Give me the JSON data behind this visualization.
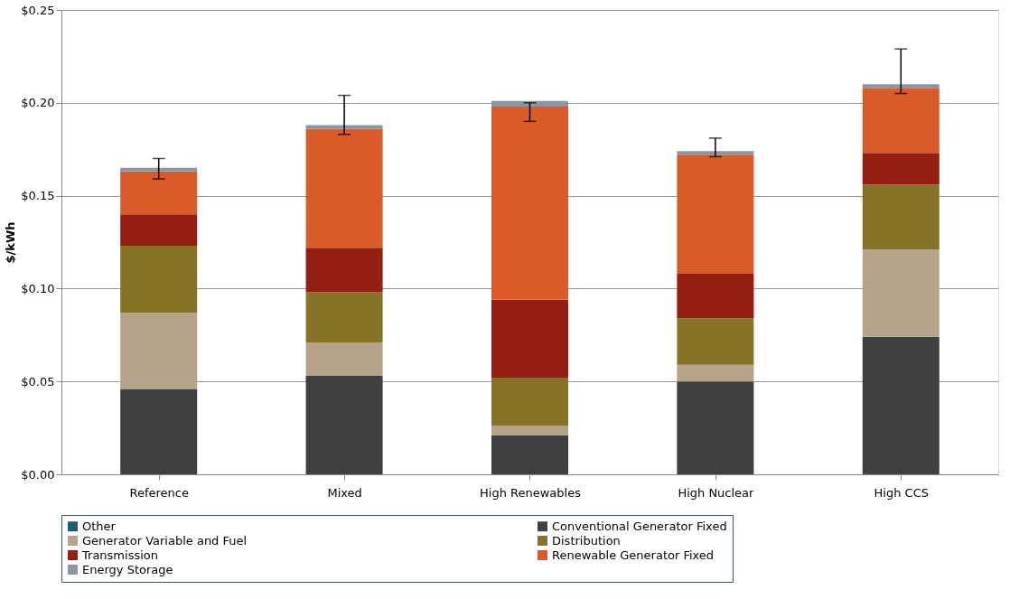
{
  "chart_data": {
    "type": "bar",
    "stacked": true,
    "ylabel": "$/kWh",
    "categories": [
      "Reference",
      "Mixed",
      "High Renewables",
      "High Nuclear",
      "High CCS"
    ],
    "series": [
      {
        "name": "Other",
        "color": "#1f5c7a",
        "values": [
          0,
          0,
          0,
          0,
          0
        ]
      },
      {
        "name": "Conventional Generator Fixed",
        "color": "#404040",
        "values": [
          0.046,
          0.053,
          0.021,
          0.05,
          0.074
        ]
      },
      {
        "name": "Generator Variable and Fuel",
        "color": "#b5a48a",
        "values": [
          0.041,
          0.018,
          0.005,
          0.009,
          0.047
        ]
      },
      {
        "name": "Distribution",
        "color": "#857428",
        "values": [
          0.036,
          0.027,
          0.026,
          0.025,
          0.035
        ]
      },
      {
        "name": "Transmission",
        "color": "#961d12",
        "values": [
          0.017,
          0.024,
          0.042,
          0.024,
          0.017
        ]
      },
      {
        "name": "Renewable Generator Fixed",
        "color": "#d95b2a",
        "values": [
          0.023,
          0.064,
          0.104,
          0.064,
          0.035
        ]
      },
      {
        "name": "Energy Storage",
        "color": "#8c96a0",
        "values": [
          0.002,
          0.002,
          0.003,
          0.002,
          0.002
        ],
        "errors": [
          [
            0.159,
            0.17
          ],
          [
            0.183,
            0.204
          ],
          [
            0.19,
            0.2
          ],
          [
            0.171,
            0.181
          ],
          [
            0.205,
            0.229
          ]
        ]
      }
    ],
    "ylim": [
      0,
      0.25
    ],
    "yticks": [
      {
        "value": 0,
        "label": "$0.00"
      },
      {
        "value": 0.05,
        "label": "$0.05"
      },
      {
        "value": 0.1,
        "label": "$0.10"
      },
      {
        "value": 0.15,
        "label": "$0.15"
      },
      {
        "value": 0.2,
        "label": "$0.20"
      },
      {
        "value": 0.25,
        "label": "$0.25"
      }
    ],
    "grid": "y",
    "legend": "bottom"
  }
}
